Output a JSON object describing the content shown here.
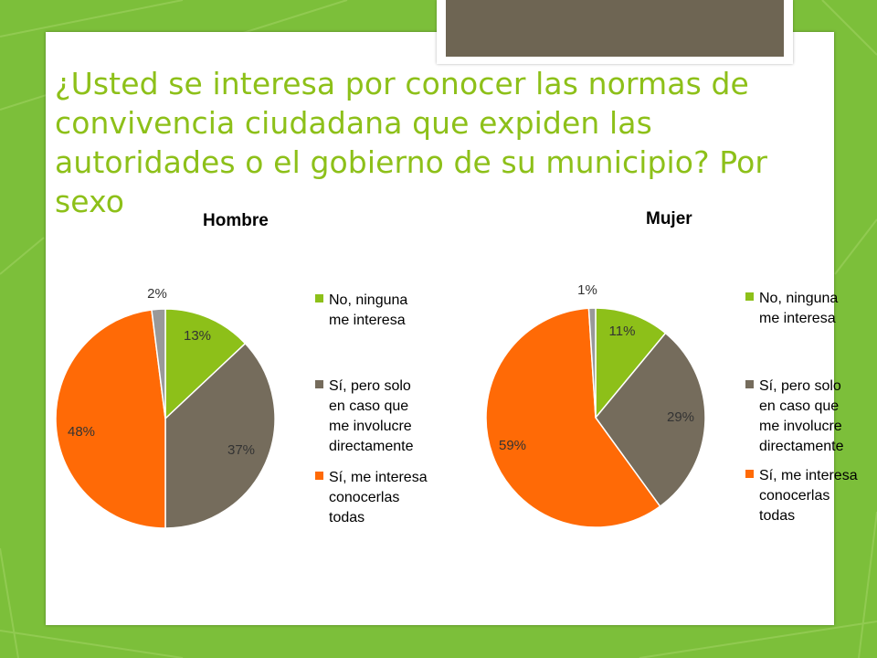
{
  "title": "¿Usted se interesa por conocer las normas de convivencia ciudadana que expiden las autoridades o el gobierno de su municipio? Por sexo",
  "colors": {
    "background": "#7cbf3a",
    "title": "#8dc019",
    "tab": "#6e6553",
    "no": "#8dc019",
    "si_pero": "#756c5c",
    "si_todas": "#ff6a06",
    "si_otra": "#999999"
  },
  "legend": [
    {
      "label": "No, ninguna me interesa",
      "lines": [
        "No, ninguna",
        "me interesa"
      ]
    },
    {
      "label": "Sí, pero solo en caso que me involucre directamente",
      "lines": [
        "Sí, pero solo",
        "en caso que",
        "me involucre",
        "directamente"
      ]
    },
    {
      "label": "Sí, me interesa conocerlas todas",
      "lines": [
        "Sí, me interesa",
        "conocerlas",
        "todas"
      ]
    }
  ],
  "chart_data": [
    {
      "type": "pie",
      "title": "Hombre",
      "categories": [
        "No, ninguna me interesa",
        "Sí, pero solo en caso que me involucre directamente",
        "Sí, me interesa conocerlas todas",
        ""
      ],
      "values": [
        13,
        37,
        48,
        2
      ],
      "labels": [
        "13%",
        "37%",
        "48%",
        "2%"
      ],
      "legend_position": "right"
    },
    {
      "type": "pie",
      "title": "Mujer",
      "categories": [
        "No, ninguna me interesa",
        "Sí, pero solo en caso que me involucre directamente",
        "Sí, me interesa conocerlas todas",
        ""
      ],
      "values": [
        11,
        29,
        59,
        1
      ],
      "labels": [
        "11%",
        "29%",
        "59%",
        "1%"
      ],
      "legend_position": "right"
    }
  ]
}
